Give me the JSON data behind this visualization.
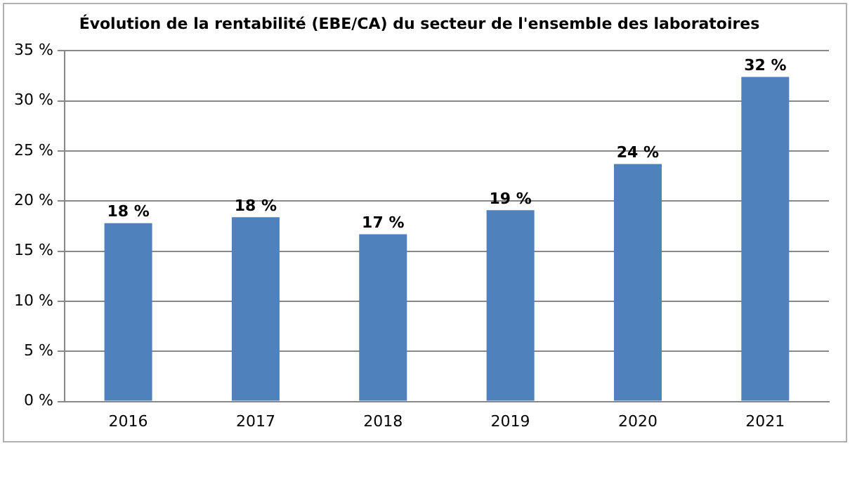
{
  "chart_data": {
    "type": "bar",
    "title": "Évolution de la rentabilité (EBE/CA) du secteur de l'ensemble des laboratoires",
    "categories": [
      "2016",
      "2017",
      "2018",
      "2019",
      "2020",
      "2021"
    ],
    "values": [
      17.8,
      18.4,
      16.7,
      19.1,
      23.7,
      32.4
    ],
    "value_labels": [
      "18 %",
      "18 %",
      "17 %",
      "19 %",
      "24 %",
      "32 %"
    ],
    "color": "#4f81bd",
    "ylim": [
      0,
      35
    ],
    "yticks": [
      {
        "value": 0,
        "label": "0 %"
      },
      {
        "value": 5,
        "label": "5 %"
      },
      {
        "value": 10,
        "label": "10 %"
      },
      {
        "value": 15,
        "label": "15 %"
      },
      {
        "value": 20,
        "label": "20 %"
      },
      {
        "value": 25,
        "label": "25 %"
      },
      {
        "value": 30,
        "label": "30 %"
      },
      {
        "value": 35,
        "label": "35 %"
      }
    ],
    "grid": "y"
  }
}
